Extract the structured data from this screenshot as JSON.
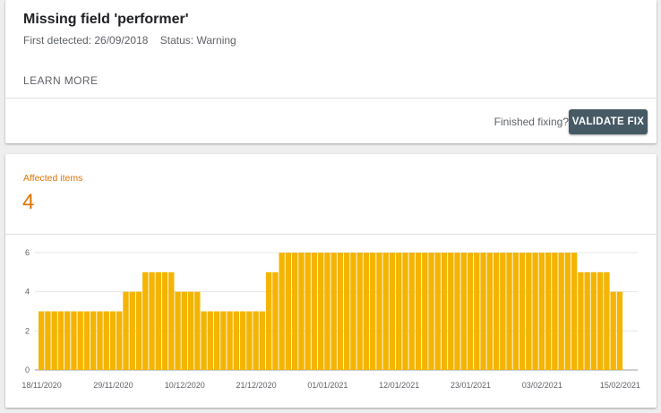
{
  "issue": {
    "title": "Missing field 'performer'",
    "first_detected": "First detected: 26/09/2018",
    "status": "Status: Warning",
    "learn_more": "LEARN MORE",
    "finished_fixing": "Finished fixing?",
    "validate_fix": "VALIDATE FIX"
  },
  "affected": {
    "label": "Affected items",
    "count": "4"
  },
  "colors": {
    "accent": "#e37400",
    "bar": "#f4b400",
    "button": "#455a64"
  },
  "chart_data": {
    "type": "bar",
    "title": "",
    "xlabel": "",
    "ylabel": "",
    "ylim": [
      0,
      6
    ],
    "y_ticks": [
      "0",
      "2",
      "4",
      "6"
    ],
    "grid": true,
    "x_tick_labels": [
      "18/11/2020",
      "29/11/2020",
      "10/12/2020",
      "21/12/2020",
      "01/01/2021",
      "12/01/2021",
      "23/01/2021",
      "03/02/2021",
      "15/02/2021"
    ],
    "categories": [
      "18/11/2020",
      "19/11/2020",
      "20/11/2020",
      "21/11/2020",
      "22/11/2020",
      "23/11/2020",
      "24/11/2020",
      "25/11/2020",
      "26/11/2020",
      "27/11/2020",
      "28/11/2020",
      "29/11/2020",
      "30/11/2020",
      "01/12/2020",
      "02/12/2020",
      "03/12/2020",
      "04/12/2020",
      "05/12/2020",
      "06/12/2020",
      "07/12/2020",
      "08/12/2020",
      "09/12/2020",
      "10/12/2020",
      "11/12/2020",
      "12/12/2020",
      "13/12/2020",
      "14/12/2020",
      "15/12/2020",
      "16/12/2020",
      "17/12/2020",
      "18/12/2020",
      "19/12/2020",
      "20/12/2020",
      "21/12/2020",
      "22/12/2020",
      "23/12/2020",
      "24/12/2020",
      "25/12/2020",
      "26/12/2020",
      "27/12/2020",
      "28/12/2020",
      "29/12/2020",
      "30/12/2020",
      "31/12/2020",
      "01/01/2021",
      "02/01/2021",
      "03/01/2021",
      "04/01/2021",
      "05/01/2021",
      "06/01/2021",
      "07/01/2021",
      "08/01/2021",
      "09/01/2021",
      "10/01/2021",
      "11/01/2021",
      "12/01/2021",
      "13/01/2021",
      "14/01/2021",
      "15/01/2021",
      "16/01/2021",
      "17/01/2021",
      "18/01/2021",
      "19/01/2021",
      "20/01/2021",
      "21/01/2021",
      "22/01/2021",
      "23/01/2021",
      "24/01/2021",
      "25/01/2021",
      "26/01/2021",
      "27/01/2021",
      "28/01/2021",
      "29/01/2021",
      "30/01/2021",
      "31/01/2021",
      "01/02/2021",
      "02/02/2021",
      "03/02/2021",
      "04/02/2021",
      "05/02/2021",
      "06/02/2021",
      "07/02/2021",
      "08/02/2021",
      "09/02/2021",
      "10/02/2021",
      "11/02/2021",
      "12/02/2021",
      "13/02/2021",
      "14/02/2021",
      "15/02/2021"
    ],
    "values": [
      3,
      3,
      3,
      3,
      3,
      3,
      3,
      3,
      3,
      3,
      3,
      3,
      3,
      4,
      4,
      4,
      5,
      5,
      5,
      5,
      5,
      4,
      4,
      4,
      4,
      3,
      3,
      3,
      3,
      3,
      3,
      3,
      3,
      3,
      3,
      5,
      5,
      6,
      6,
      6,
      6,
      6,
      6,
      6,
      6,
      6,
      6,
      6,
      6,
      6,
      6,
      6,
      6,
      6,
      6,
      6,
      6,
      6,
      6,
      6,
      6,
      6,
      6,
      6,
      6,
      6,
      6,
      6,
      6,
      6,
      6,
      6,
      6,
      6,
      6,
      6,
      6,
      6,
      6,
      6,
      6,
      6,
      6,
      5,
      5,
      5,
      5,
      5,
      4,
      4
    ]
  }
}
